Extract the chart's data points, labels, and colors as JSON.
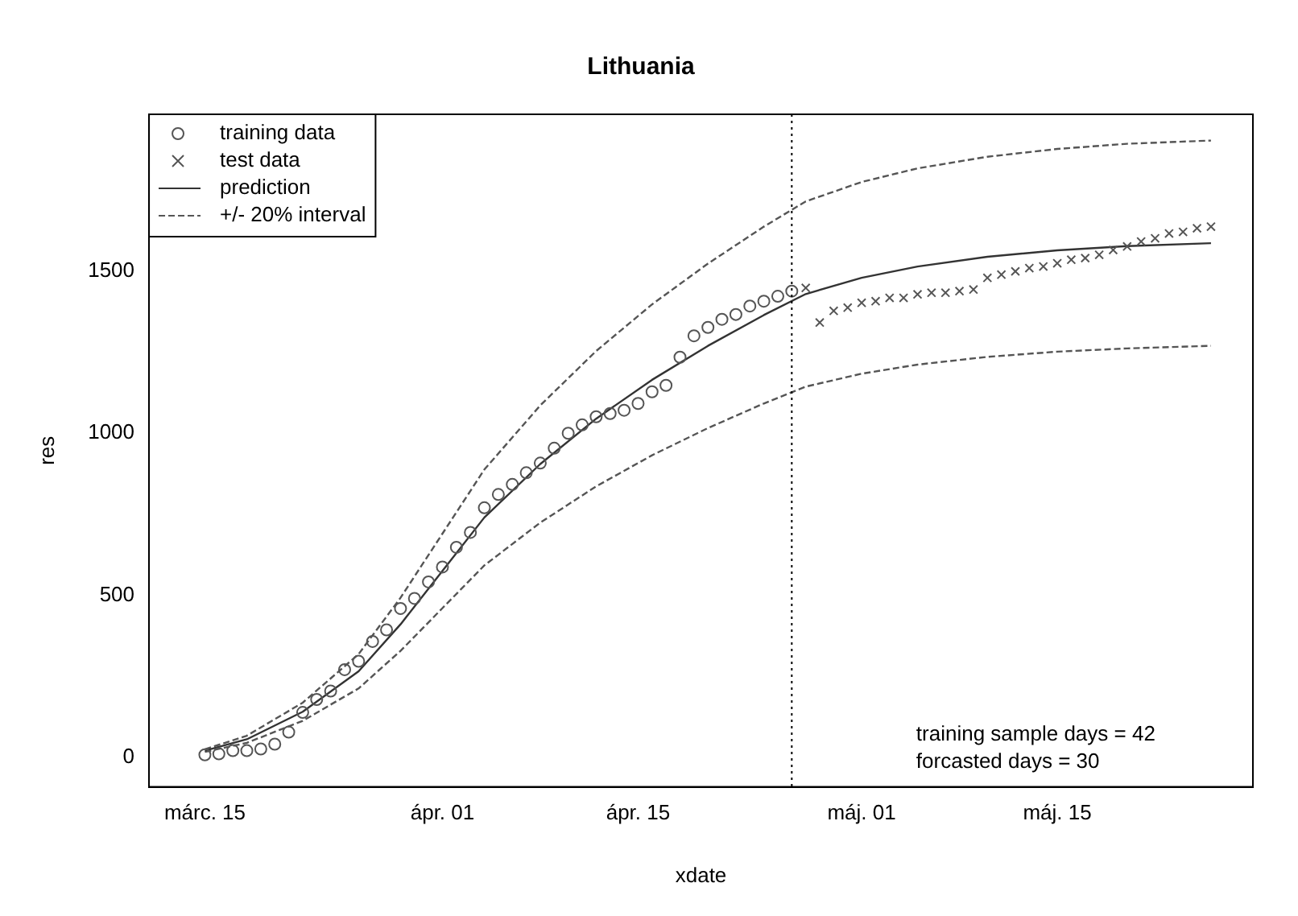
{
  "chart_data": {
    "type": "scatter",
    "title": "Lithuania",
    "xlabel": "xdate",
    "ylabel": "res",
    "xlim": [
      "--03-11",
      "--05-29"
    ],
    "ylim": [
      -92,
      1985
    ],
    "xticks": [
      {
        "value": "--03-15",
        "label": "márc. 15"
      },
      {
        "value": "--04-01",
        "label": "ápr. 01"
      },
      {
        "value": "--04-15",
        "label": "ápr. 15"
      },
      {
        "value": "--05-01",
        "label": "máj. 01"
      },
      {
        "value": "--05-15",
        "label": "máj. 15"
      }
    ],
    "yticks": [
      0,
      500,
      1000,
      1500
    ],
    "grid": false,
    "legend": "top left",
    "series": [
      {
        "name": "training data",
        "marker": "circle",
        "color": "#555555",
        "x": [
          "--03-15",
          "--03-16",
          "--03-17",
          "--03-18",
          "--03-19",
          "--03-20",
          "--03-21",
          "--03-22",
          "--03-23",
          "--03-24",
          "--03-25",
          "--03-26",
          "--03-27",
          "--03-28",
          "--03-29",
          "--03-30",
          "--03-31",
          "--04-01",
          "--04-02",
          "--04-03",
          "--04-04",
          "--04-05",
          "--04-06",
          "--04-07",
          "--04-08",
          "--04-09",
          "--04-10",
          "--04-11",
          "--04-12",
          "--04-13",
          "--04-14",
          "--04-15",
          "--04-16",
          "--04-17",
          "--04-18",
          "--04-19",
          "--04-20",
          "--04-21",
          "--04-22",
          "--04-23",
          "--04-24",
          "--04-25",
          "--04-26"
        ],
        "values": [
          7,
          10,
          20,
          20,
          25,
          40,
          77,
          138,
          178,
          204,
          270,
          296,
          357,
          393,
          459,
          490,
          541,
          587,
          648,
          694,
          770,
          811,
          842,
          878,
          908,
          954,
          1000,
          1026,
          1051,
          1061,
          1071,
          1092,
          1128,
          1148,
          1235,
          1301,
          1327,
          1352,
          1367,
          1393,
          1408,
          1423,
          1439
        ]
      },
      {
        "name": "test data",
        "marker": "cross",
        "color": "#555555",
        "x": [
          "--04-27",
          "--04-28",
          "--04-29",
          "--04-30",
          "--05-01",
          "--05-02",
          "--05-03",
          "--05-04",
          "--05-05",
          "--05-06",
          "--05-07",
          "--05-08",
          "--05-09",
          "--05-10",
          "--05-11",
          "--05-12",
          "--05-13",
          "--05-14",
          "--05-15",
          "--05-16",
          "--05-17",
          "--05-18",
          "--05-19",
          "--05-20",
          "--05-21",
          "--05-22",
          "--05-23",
          "--05-24",
          "--05-25",
          "--05-26"
        ],
        "values": [
          1449,
          1342,
          1378,
          1388,
          1403,
          1408,
          1418,
          1418,
          1429,
          1434,
          1434,
          1439,
          1444,
          1480,
          1490,
          1500,
          1510,
          1515,
          1525,
          1536,
          1541,
          1551,
          1566,
          1577,
          1592,
          1602,
          1617,
          1622,
          1633,
          1638
        ]
      },
      {
        "name": "prediction",
        "type": "line",
        "line_style": "solid",
        "marker": "none",
        "color": "#333333",
        "x": [
          "--03-15",
          "--03-18",
          "--03-22",
          "--03-26",
          "--03-29",
          "--04-01",
          "--04-04",
          "--04-08",
          "--04-12",
          "--04-16",
          "--04-20",
          "--04-24",
          "--04-27",
          "--05-01",
          "--05-05",
          "--05-10",
          "--05-15",
          "--05-20",
          "--05-26"
        ],
        "values": [
          20,
          55,
          140,
          265,
          410,
          575,
          740,
          905,
          1045,
          1165,
          1270,
          1365,
          1430,
          1480,
          1515,
          1545,
          1565,
          1578,
          1587
        ]
      },
      {
        "name": "+/- 20% interval",
        "type": "line",
        "line_style": "dashed",
        "marker": "none",
        "color": "#555555",
        "x": [
          "--03-15",
          "--03-18",
          "--03-22",
          "--03-26",
          "--03-29",
          "--04-01",
          "--04-04",
          "--04-08",
          "--04-12",
          "--04-16",
          "--04-20",
          "--04-24",
          "--04-27",
          "--05-01",
          "--05-05",
          "--05-10",
          "--05-15",
          "--05-20",
          "--05-26"
        ],
        "values": [
          24,
          66,
          168,
          318,
          492,
          690,
          888,
          1086,
          1254,
          1398,
          1524,
          1638,
          1716,
          1776,
          1818,
          1854,
          1878,
          1894,
          1904
        ]
      },
      {
        "type": "line",
        "line_style": "dashed",
        "marker": "none",
        "color": "#555555",
        "x": [
          "--03-15",
          "--03-18",
          "--03-22",
          "--03-26",
          "--03-29",
          "--04-01",
          "--04-04",
          "--04-08",
          "--04-12",
          "--04-16",
          "--04-20",
          "--04-24",
          "--04-27",
          "--05-01",
          "--05-05",
          "--05-10",
          "--05-15",
          "--05-20",
          "--05-26"
        ],
        "values": [
          16,
          44,
          112,
          212,
          328,
          460,
          592,
          724,
          836,
          932,
          1016,
          1092,
          1144,
          1184,
          1212,
          1236,
          1252,
          1262,
          1270
        ]
      }
    ],
    "ref_lines": [
      {
        "axis": "x",
        "value": "--04-26",
        "line_style": "dotted",
        "color": "#000000"
      }
    ],
    "annotations": [
      "training sample days = 42",
      "forcasted days = 30"
    ]
  }
}
